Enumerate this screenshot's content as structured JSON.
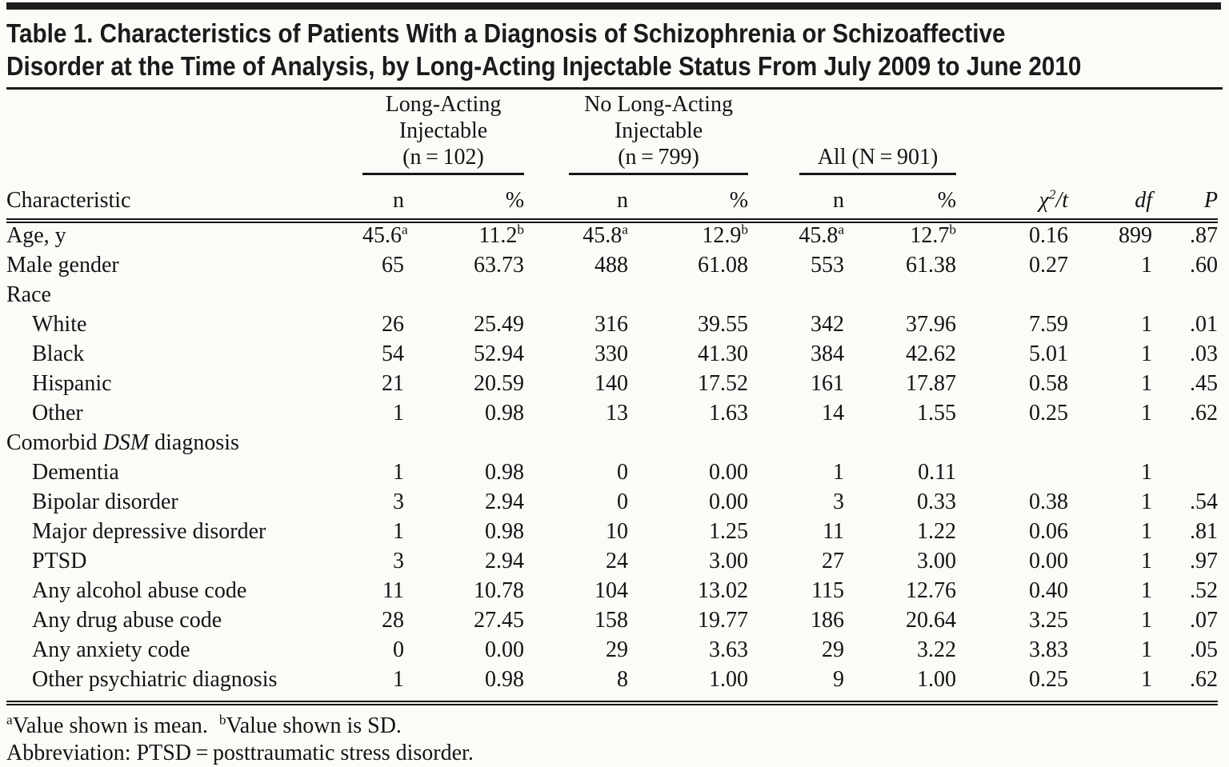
{
  "title": {
    "line1": "Table 1. Characteristics of Patients With a Diagnosis of Schizophrenia or Schizoaffective",
    "line2": "Disorder at the Time of Analysis, by Long-Acting Injectable Status From July 2009 to June 2010"
  },
  "table": {
    "groups": [
      {
        "lines": [
          "Long-Acting",
          "Injectable",
          "(n = 102)"
        ]
      },
      {
        "lines": [
          "No Long-Acting",
          "Injectable",
          "(n = 799)"
        ]
      },
      {
        "lines": [
          "All (N = 901)"
        ]
      }
    ],
    "header": {
      "characteristic": "Characteristic",
      "n": "n",
      "pct": "%",
      "chi": "*χ^2/t*",
      "df": "*df*",
      "p": "*P*"
    },
    "rows": [
      {
        "label": "Age, y",
        "indent": false,
        "cells": [
          "45.6^a",
          "11.2^b",
          "45.8^a",
          "12.9^b",
          "45.8^a",
          "12.7^b",
          "0.16",
          "899",
          ".87"
        ]
      },
      {
        "label": "Male gender",
        "indent": false,
        "cells": [
          "65",
          "63.73",
          "488",
          "61.08",
          "553",
          "61.38",
          "0.27",
          "1",
          ".60"
        ]
      },
      {
        "label": "Race",
        "indent": false,
        "cells": [
          "",
          "",
          "",
          "",
          "",
          "",
          "",
          "",
          ""
        ]
      },
      {
        "label": "White",
        "indent": true,
        "cells": [
          "26",
          "25.49",
          "316",
          "39.55",
          "342",
          "37.96",
          "7.59",
          "1",
          ".01"
        ]
      },
      {
        "label": "Black",
        "indent": true,
        "cells": [
          "54",
          "52.94",
          "330",
          "41.30",
          "384",
          "42.62",
          "5.01",
          "1",
          ".03"
        ]
      },
      {
        "label": "Hispanic",
        "indent": true,
        "cells": [
          "21",
          "20.59",
          "140",
          "17.52",
          "161",
          "17.87",
          "0.58",
          "1",
          ".45"
        ]
      },
      {
        "label": "Other",
        "indent": true,
        "cells": [
          "1",
          "0.98",
          "13",
          "1.63",
          "14",
          "1.55",
          "0.25",
          "1",
          ".62"
        ]
      },
      {
        "label": "Comorbid *DSM* diagnosis",
        "indent": false,
        "cells": [
          "",
          "",
          "",
          "",
          "",
          "",
          "",
          "",
          ""
        ]
      },
      {
        "label": "Dementia",
        "indent": true,
        "cells": [
          "1",
          "0.98",
          "0",
          "0.00",
          "1",
          "0.11",
          "",
          "1",
          ""
        ]
      },
      {
        "label": "Bipolar disorder",
        "indent": true,
        "cells": [
          "3",
          "2.94",
          "0",
          "0.00",
          "3",
          "0.33",
          "0.38",
          "1",
          ".54"
        ]
      },
      {
        "label": "Major depressive disorder",
        "indent": true,
        "cells": [
          "1",
          "0.98",
          "10",
          "1.25",
          "11",
          "1.22",
          "0.06",
          "1",
          ".81"
        ]
      },
      {
        "label": "PTSD",
        "indent": true,
        "cells": [
          "3",
          "2.94",
          "24",
          "3.00",
          "27",
          "3.00",
          "0.00",
          "1",
          ".97"
        ]
      },
      {
        "label": "Any alcohol abuse code",
        "indent": true,
        "cells": [
          "11",
          "10.78",
          "104",
          "13.02",
          "115",
          "12.76",
          "0.40",
          "1",
          ".52"
        ]
      },
      {
        "label": "Any drug abuse code",
        "indent": true,
        "cells": [
          "28",
          "27.45",
          "158",
          "19.77",
          "186",
          "20.64",
          "3.25",
          "1",
          ".07"
        ]
      },
      {
        "label": "Any anxiety code",
        "indent": true,
        "cells": [
          "0",
          "0.00",
          "29",
          "3.63",
          "29",
          "3.22",
          "3.83",
          "1",
          ".05"
        ]
      },
      {
        "label": "Other psychiatric diagnosis",
        "indent": true,
        "cells": [
          "1",
          "0.98",
          "8",
          "1.00",
          "9",
          "1.00",
          "0.25",
          "1",
          ".62"
        ]
      }
    ]
  },
  "footnotes": {
    "line1": "^aValue shown is mean.  ^bValue shown is SD.",
    "line2": "Abbreviation: PTSD = posttraumatic stress disorder."
  }
}
